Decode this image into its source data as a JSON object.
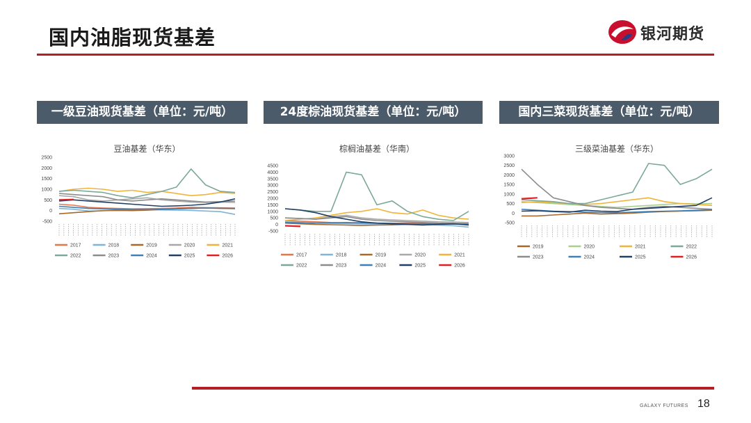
{
  "page": {
    "title": "国内油脂现货基差",
    "page_number": "18",
    "footer_brand": "GALAXY FUTURES"
  },
  "logo": {
    "text": "银河期货",
    "color": "#c8102e"
  },
  "colors": {
    "accent_red": "#b41f24",
    "panel_header": "#4b5b69"
  },
  "panels": [
    {
      "header": "一级豆油现货基差（单位：元/吨）"
    },
    {
      "header": "24度棕油现货基差（单位：元/吨）"
    },
    {
      "header": "国内三菜现货基差（单位：元/吨）"
    }
  ],
  "chart_data": [
    {
      "type": "line",
      "title": "豆油基差（华东）",
      "ylim": [
        -500,
        2500
      ],
      "yticks": [
        -500,
        0,
        500,
        1000,
        1500,
        2000,
        2500
      ],
      "x": [
        0,
        1,
        2,
        3,
        4,
        5,
        6,
        7,
        8,
        9,
        10,
        11,
        12
      ],
      "legend_position": "bottom",
      "series": [
        {
          "name": "2017",
          "color": "#e8744a",
          "values": [
            300,
            250,
            150,
            120,
            100,
            80,
            90,
            100,
            120,
            150,
            140,
            130,
            120
          ]
        },
        {
          "name": "2018",
          "color": "#7fb3d8",
          "values": [
            100,
            60,
            -20,
            -10,
            20,
            30,
            40,
            30,
            20,
            10,
            -20,
            -50,
            -180
          ]
        },
        {
          "name": "2019",
          "color": "#a8682a",
          "values": [
            -150,
            -100,
            -50,
            0,
            10,
            0,
            20,
            50,
            80,
            100,
            120,
            100,
            90
          ]
        },
        {
          "name": "2020",
          "color": "#a8a8a8",
          "values": [
            700,
            650,
            500,
            450,
            500,
            550,
            600,
            500,
            450,
            400,
            380,
            400,
            380
          ]
        },
        {
          "name": "2021",
          "color": "#f0b43c",
          "values": [
            900,
            1000,
            1050,
            1000,
            900,
            950,
            850,
            900,
            800,
            700,
            750,
            850,
            800
          ]
        },
        {
          "name": "2022",
          "color": "#7aa89a",
          "values": [
            900,
            950,
            900,
            850,
            700,
            600,
            750,
            900,
            1100,
            1950,
            1200,
            900,
            850
          ]
        },
        {
          "name": "2023",
          "color": "#8c8c8c",
          "values": [
            800,
            750,
            700,
            650,
            500,
            450,
            500,
            550,
            500,
            450,
            400,
            420,
            450
          ]
        },
        {
          "name": "2024",
          "color": "#3e7fb5",
          "values": [
            200,
            150,
            100,
            80,
            60,
            50,
            40,
            60,
            80,
            100,
            120,
            110,
            100
          ]
        },
        {
          "name": "2025",
          "color": "#1f3f66",
          "values": [
            450,
            500,
            450,
            400,
            350,
            300,
            250,
            200,
            220,
            250,
            300,
            400,
            550
          ]
        },
        {
          "name": "2026",
          "color": "#e02020",
          "values": [
            500,
            520,
            null,
            null,
            null,
            null,
            null,
            null,
            null,
            null,
            null,
            null,
            null
          ]
        }
      ]
    },
    {
      "type": "line",
      "title": "棕榈油基差（华南）",
      "ylim": [
        -500,
        4500
      ],
      "yticks": [
        -500,
        0,
        500,
        1000,
        1500,
        2000,
        2500,
        3000,
        3500,
        4000,
        4500
      ],
      "x": [
        0,
        1,
        2,
        3,
        4,
        5,
        6,
        7,
        8,
        9,
        10,
        11,
        12
      ],
      "legend_position": "bottom",
      "series": [
        {
          "name": "2017",
          "color": "#e8744a",
          "values": [
            300,
            250,
            200,
            150,
            120,
            100,
            80,
            90,
            100,
            80,
            70,
            60,
            50
          ]
        },
        {
          "name": "2018",
          "color": "#7fb3d8",
          "values": [
            200,
            150,
            100,
            80,
            60,
            40,
            30,
            20,
            10,
            0,
            -50,
            -100,
            -200
          ]
        },
        {
          "name": "2019",
          "color": "#a8682a",
          "values": [
            100,
            50,
            0,
            -20,
            -50,
            -80,
            -50,
            -30,
            0,
            20,
            30,
            20,
            10
          ]
        },
        {
          "name": "2020",
          "color": "#a8a8a8",
          "values": [
            500,
            450,
            400,
            600,
            700,
            500,
            400,
            350,
            300,
            250,
            200,
            180,
            150
          ]
        },
        {
          "name": "2021",
          "color": "#f0b43c",
          "values": [
            300,
            400,
            500,
            700,
            900,
            1000,
            1200,
            900,
            800,
            1100,
            700,
            500,
            400
          ]
        },
        {
          "name": "2022",
          "color": "#7aa89a",
          "values": [
            1200,
            1100,
            1000,
            1000,
            4000,
            3800,
            1500,
            1800,
            1000,
            600,
            400,
            300,
            1000
          ]
        },
        {
          "name": "2023",
          "color": "#8c8c8c",
          "values": [
            500,
            450,
            400,
            500,
            600,
            400,
            300,
            250,
            200,
            150,
            100,
            80,
            60
          ]
        },
        {
          "name": "2024",
          "color": "#3e7fb5",
          "values": [
            150,
            120,
            100,
            120,
            150,
            130,
            100,
            80,
            60,
            50,
            40,
            30,
            20
          ]
        },
        {
          "name": "2025",
          "color": "#1f3f66",
          "values": [
            1200,
            1100,
            900,
            600,
            400,
            200,
            100,
            50,
            0,
            -50,
            0,
            50,
            -50
          ]
        },
        {
          "name": "2026",
          "color": "#e02020",
          "values": [
            -100,
            -150,
            null,
            null,
            null,
            null,
            null,
            null,
            null,
            null,
            null,
            null,
            null
          ]
        }
      ]
    },
    {
      "type": "line",
      "title": "三级菜油基差（华东）",
      "ylim": [
        -500,
        3000
      ],
      "yticks": [
        -500,
        0,
        500,
        1000,
        1500,
        2000,
        2500,
        3000
      ],
      "x": [
        0,
        1,
        2,
        3,
        4,
        5,
        6,
        7,
        8,
        9,
        10,
        11,
        12
      ],
      "legend_position": "bottom",
      "series": [
        {
          "name": "2019",
          "color": "#a8682a",
          "values": [
            -150,
            -150,
            -100,
            -50,
            0,
            -50,
            -30,
            0,
            50,
            80,
            100,
            120,
            150
          ]
        },
        {
          "name": "2020",
          "color": "#a8d08d",
          "values": [
            600,
            550,
            500,
            450,
            400,
            350,
            300,
            350,
            400,
            450,
            500,
            480,
            500
          ]
        },
        {
          "name": "2021",
          "color": "#f0b43c",
          "values": [
            550,
            600,
            550,
            500,
            450,
            500,
            600,
            700,
            800,
            600,
            500,
            450,
            400
          ]
        },
        {
          "name": "2022",
          "color": "#7aa89a",
          "values": [
            700,
            650,
            600,
            500,
            500,
            700,
            900,
            1100,
            2600,
            2500,
            1500,
            1800,
            2300
          ]
        },
        {
          "name": "2023",
          "color": "#8c8c8c",
          "values": [
            2300,
            1500,
            800,
            600,
            400,
            300,
            250,
            200,
            300,
            350,
            300,
            250,
            200
          ]
        },
        {
          "name": "2024",
          "color": "#3e7fb5",
          "values": [
            200,
            150,
            100,
            80,
            50,
            30,
            20,
            50,
            80,
            100,
            120,
            150,
            180
          ]
        },
        {
          "name": "2025",
          "color": "#1f3f66",
          "values": [
            100,
            120,
            80,
            50,
            150,
            100,
            80,
            200,
            250,
            300,
            350,
            400,
            800
          ]
        },
        {
          "name": "2026",
          "color": "#e02020",
          "values": [
            750,
            800,
            null,
            null,
            null,
            null,
            null,
            null,
            null,
            null,
            null,
            null,
            null
          ]
        }
      ]
    }
  ]
}
